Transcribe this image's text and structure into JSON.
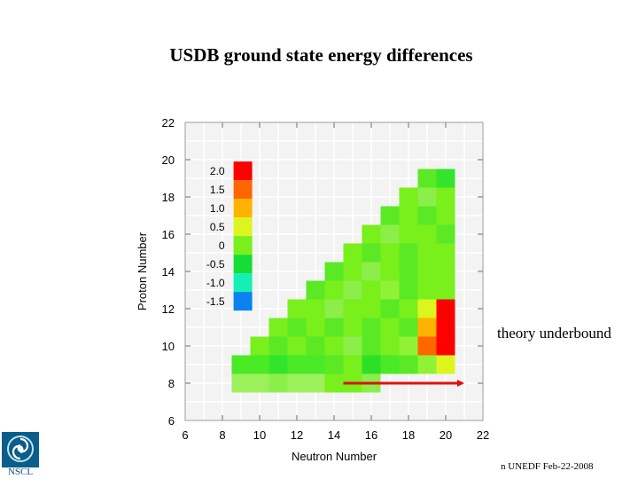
{
  "title": "USDB ground state energy differences",
  "annotations": {
    "theory_underbound": "theory underbound",
    "footer": "n UNEDF Feb-22-2008"
  },
  "logo": {
    "label": "NSCL",
    "icon": "nscl-logo-icon"
  },
  "colors": {
    "2.0": "#ff0000",
    "1.5": "#ff6600",
    "1.0": "#ffb300",
    "0.5": "#ddf51e",
    "0": "#79ef1c",
    "-0.5": "#15dd35",
    "-1.0": "#14f0b4",
    "-1.5": "#0a82f0",
    "light_green": "#9cf05a",
    "arrow": "#e01010",
    "frame": "#999999",
    "grid": "#ffffff",
    "plot_bg": "#f3f3f3"
  },
  "chart_data": {
    "type": "heatmap",
    "title": "USDB ground state energy differences",
    "xlabel": "Neutron Number",
    "ylabel": "Proton Number",
    "xlim": [
      6,
      22
    ],
    "ylim": [
      6,
      22
    ],
    "xticks": [
      6,
      8,
      10,
      12,
      14,
      16,
      18,
      20,
      22
    ],
    "yticks": [
      6,
      8,
      10,
      12,
      14,
      16,
      18,
      20,
      22
    ],
    "grid": true,
    "legend_position": "top-left",
    "legend": [
      {
        "label": "2.0",
        "color": "#ff0000"
      },
      {
        "label": "1.5",
        "color": "#ff6600"
      },
      {
        "label": "1.0",
        "color": "#ffb300"
      },
      {
        "label": "0.5",
        "color": "#ddf51e"
      },
      {
        "label": "0",
        "color": "#79ef1c"
      },
      {
        "label": "-0.5",
        "color": "#15dd35"
      },
      {
        "label": "-1.0",
        "color": "#14f0b4"
      },
      {
        "label": "-1.5",
        "color": "#0a82f0"
      }
    ],
    "cells": [
      {
        "n": 9,
        "z": 8,
        "color": "#9cf05a"
      },
      {
        "n": 10,
        "z": 8,
        "color": "#9cf05a"
      },
      {
        "n": 11,
        "z": 8,
        "color": "#8cee48"
      },
      {
        "n": 12,
        "z": 8,
        "color": "#9cf05a"
      },
      {
        "n": 13,
        "z": 8,
        "color": "#9cf05a"
      },
      {
        "n": 14,
        "z": 8,
        "color": "#79ef1c"
      },
      {
        "n": 15,
        "z": 8,
        "color": "#79ef1c"
      },
      {
        "n": 16,
        "z": 8,
        "color": "#8cee48"
      },
      {
        "n": 9,
        "z": 9,
        "color": "#4bea26"
      },
      {
        "n": 10,
        "z": 9,
        "color": "#4bea26"
      },
      {
        "n": 11,
        "z": 9,
        "color": "#33e52a"
      },
      {
        "n": 12,
        "z": 9,
        "color": "#4bea26"
      },
      {
        "n": 13,
        "z": 9,
        "color": "#4bea26"
      },
      {
        "n": 14,
        "z": 9,
        "color": "#5be925"
      },
      {
        "n": 15,
        "z": 9,
        "color": "#79ef1c"
      },
      {
        "n": 16,
        "z": 9,
        "color": "#2de026"
      },
      {
        "n": 17,
        "z": 9,
        "color": "#4bea26"
      },
      {
        "n": 18,
        "z": 9,
        "color": "#5be925"
      },
      {
        "n": 19,
        "z": 9,
        "color": "#8ff235"
      },
      {
        "n": 20,
        "z": 9,
        "color": "#ddf51e"
      },
      {
        "n": 10,
        "z": 10,
        "color": "#79ef1c"
      },
      {
        "n": 11,
        "z": 10,
        "color": "#5be925"
      },
      {
        "n": 12,
        "z": 10,
        "color": "#79ef1c"
      },
      {
        "n": 13,
        "z": 10,
        "color": "#5be925"
      },
      {
        "n": 14,
        "z": 10,
        "color": "#79ef1c"
      },
      {
        "n": 15,
        "z": 10,
        "color": "#8cee48"
      },
      {
        "n": 16,
        "z": 10,
        "color": "#5be925"
      },
      {
        "n": 17,
        "z": 10,
        "color": "#79ef1c"
      },
      {
        "n": 18,
        "z": 10,
        "color": "#8ff235"
      },
      {
        "n": 19,
        "z": 10,
        "color": "#ff6600"
      },
      {
        "n": 20,
        "z": 10,
        "color": "#ff0000"
      },
      {
        "n": 11,
        "z": 11,
        "color": "#79ef1c"
      },
      {
        "n": 12,
        "z": 11,
        "color": "#5be925"
      },
      {
        "n": 13,
        "z": 11,
        "color": "#79ef1c"
      },
      {
        "n": 14,
        "z": 11,
        "color": "#5be925"
      },
      {
        "n": 15,
        "z": 11,
        "color": "#79ef1c"
      },
      {
        "n": 16,
        "z": 11,
        "color": "#5be925"
      },
      {
        "n": 17,
        "z": 11,
        "color": "#79ef1c"
      },
      {
        "n": 18,
        "z": 11,
        "color": "#5be925"
      },
      {
        "n": 19,
        "z": 11,
        "color": "#ffb300"
      },
      {
        "n": 20,
        "z": 11,
        "color": "#ff0000"
      },
      {
        "n": 12,
        "z": 12,
        "color": "#79ef1c"
      },
      {
        "n": 13,
        "z": 12,
        "color": "#79ef1c"
      },
      {
        "n": 14,
        "z": 12,
        "color": "#8cee48"
      },
      {
        "n": 15,
        "z": 12,
        "color": "#79ef1c"
      },
      {
        "n": 16,
        "z": 12,
        "color": "#79ef1c"
      },
      {
        "n": 17,
        "z": 12,
        "color": "#5be925"
      },
      {
        "n": 18,
        "z": 12,
        "color": "#79ef1c"
      },
      {
        "n": 19,
        "z": 12,
        "color": "#ddf51e"
      },
      {
        "n": 20,
        "z": 12,
        "color": "#ff0000"
      },
      {
        "n": 13,
        "z": 13,
        "color": "#5be925"
      },
      {
        "n": 14,
        "z": 13,
        "color": "#79ef1c"
      },
      {
        "n": 15,
        "z": 13,
        "color": "#8cee48"
      },
      {
        "n": 16,
        "z": 13,
        "color": "#79ef1c"
      },
      {
        "n": 17,
        "z": 13,
        "color": "#8ff235"
      },
      {
        "n": 18,
        "z": 13,
        "color": "#5be925"
      },
      {
        "n": 19,
        "z": 13,
        "color": "#79ef1c"
      },
      {
        "n": 20,
        "z": 13,
        "color": "#79ef1c"
      },
      {
        "n": 14,
        "z": 14,
        "color": "#5be925"
      },
      {
        "n": 15,
        "z": 14,
        "color": "#79ef1c"
      },
      {
        "n": 16,
        "z": 14,
        "color": "#8cee48"
      },
      {
        "n": 17,
        "z": 14,
        "color": "#79ef1c"
      },
      {
        "n": 18,
        "z": 14,
        "color": "#5be925"
      },
      {
        "n": 19,
        "z": 14,
        "color": "#79ef1c"
      },
      {
        "n": 20,
        "z": 14,
        "color": "#79ef1c"
      },
      {
        "n": 15,
        "z": 15,
        "color": "#79ef1c"
      },
      {
        "n": 16,
        "z": 15,
        "color": "#5be925"
      },
      {
        "n": 17,
        "z": 15,
        "color": "#79ef1c"
      },
      {
        "n": 18,
        "z": 15,
        "color": "#5be925"
      },
      {
        "n": 19,
        "z": 15,
        "color": "#79ef1c"
      },
      {
        "n": 20,
        "z": 15,
        "color": "#79ef1c"
      },
      {
        "n": 16,
        "z": 16,
        "color": "#79ef1c"
      },
      {
        "n": 17,
        "z": 16,
        "color": "#8cee48"
      },
      {
        "n": 18,
        "z": 16,
        "color": "#79ef1c"
      },
      {
        "n": 19,
        "z": 16,
        "color": "#79ef1c"
      },
      {
        "n": 20,
        "z": 16,
        "color": "#5be925"
      },
      {
        "n": 17,
        "z": 17,
        "color": "#5be925"
      },
      {
        "n": 18,
        "z": 17,
        "color": "#79ef1c"
      },
      {
        "n": 19,
        "z": 17,
        "color": "#5be925"
      },
      {
        "n": 20,
        "z": 17,
        "color": "#79ef1c"
      },
      {
        "n": 18,
        "z": 18,
        "color": "#79ef1c"
      },
      {
        "n": 19,
        "z": 18,
        "color": "#8cee48"
      },
      {
        "n": 20,
        "z": 18,
        "color": "#79ef1c"
      },
      {
        "n": 19,
        "z": 19,
        "color": "#5be925"
      },
      {
        "n": 20,
        "z": 19,
        "color": "#33e52a"
      }
    ],
    "arrow": {
      "from": {
        "n": 15,
        "z": 8
      },
      "to": {
        "n": 21,
        "z": 8
      }
    }
  }
}
